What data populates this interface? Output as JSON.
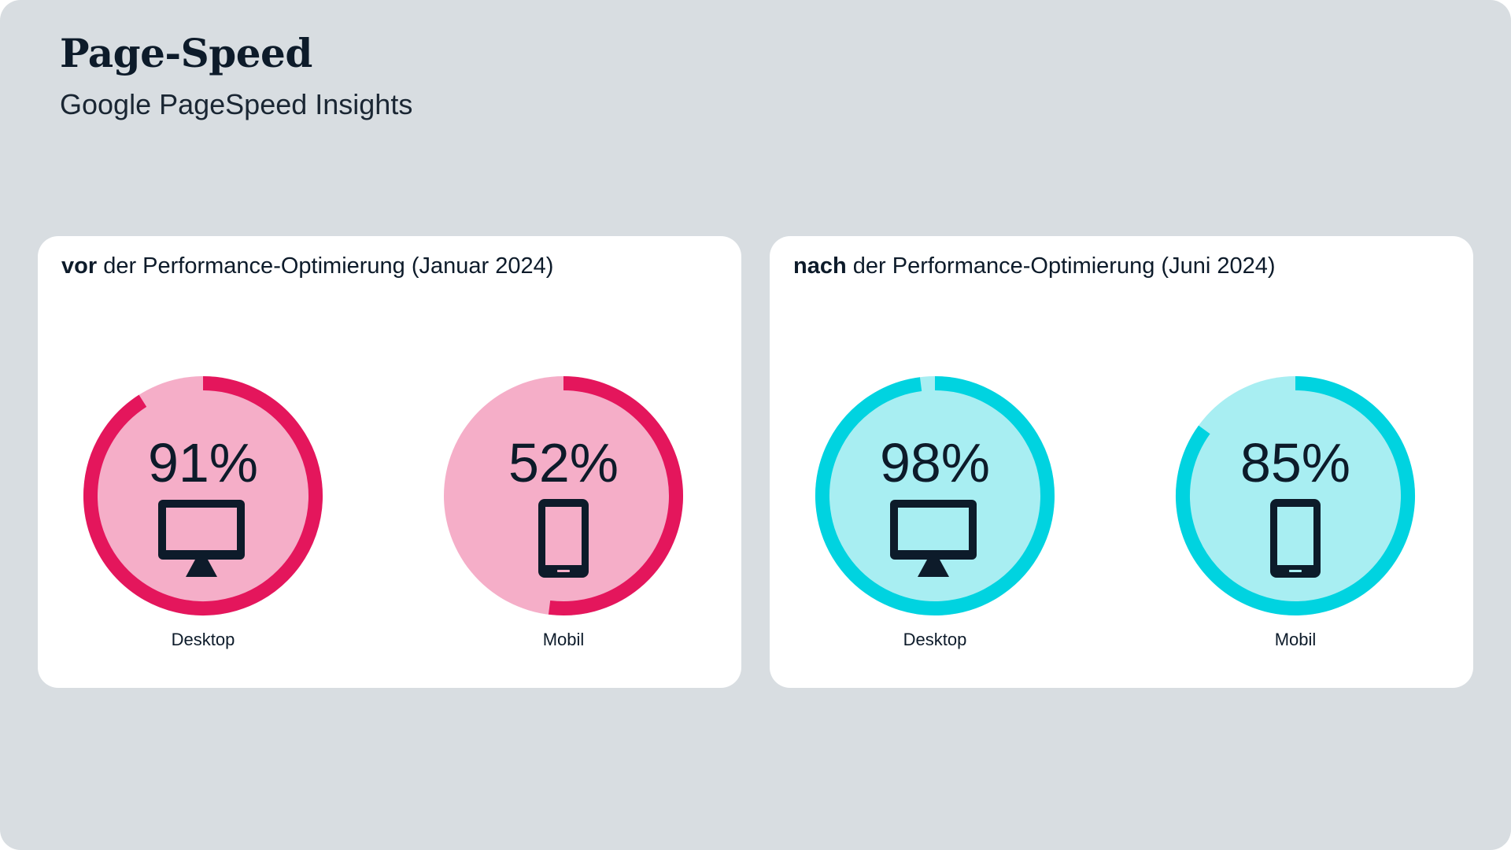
{
  "header": {
    "title": "Page-Speed",
    "subtitle": "Google PageSpeed Insights"
  },
  "colors": {
    "before_ring": "#e4165c",
    "before_fill": "#f5aec8",
    "after_ring": "#00d3e0",
    "after_fill": "#a8eef2",
    "icon": "#0d1b2a",
    "background": "#d8dde1"
  },
  "chart_data": [
    {
      "type": "pie",
      "title_bold": "vor",
      "title": "der Performance-Optimierung (Januar 2024)",
      "categories": [
        "Desktop",
        "Mobil"
      ],
      "values": [
        91,
        52
      ],
      "value_labels": [
        "91%",
        "52%"
      ],
      "icons": [
        "desktop-monitor-icon",
        "mobile-phone-icon"
      ],
      "max": 100
    },
    {
      "type": "pie",
      "title_bold": "nach",
      "title": "der Performance-Optimierung (Juni 2024)",
      "categories": [
        "Desktop",
        "Mobil"
      ],
      "values": [
        98,
        85
      ],
      "value_labels": [
        "98%",
        "85%"
      ],
      "icons": [
        "desktop-monitor-icon",
        "mobile-phone-icon"
      ],
      "max": 100
    }
  ]
}
